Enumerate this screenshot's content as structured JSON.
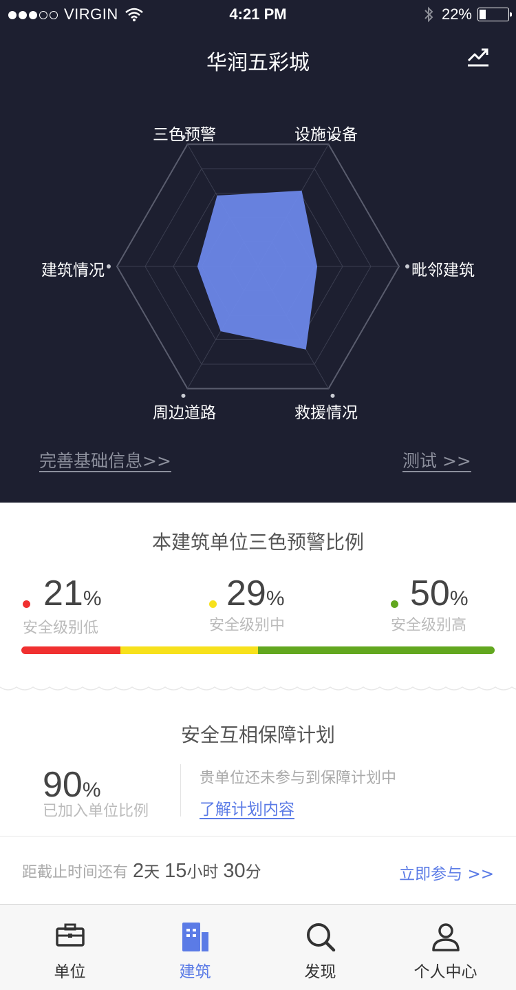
{
  "status_bar": {
    "carrier": "VIRGIN",
    "time": "4:21 PM",
    "battery": "22%"
  },
  "header": {
    "title": "华润五彩城"
  },
  "radar": {
    "axes": [
      "三色预警",
      "设施设备",
      "毗邻建筑",
      "救援情况",
      "周边道路",
      "建筑情况"
    ],
    "values": [
      0.58,
      0.62,
      0.42,
      0.68,
      0.53,
      0.43
    ],
    "fill_color": "#6b87e8"
  },
  "links": {
    "complete_info": "完善基础信息>>",
    "test": "测试 >>"
  },
  "warning": {
    "title": "本建筑单位三色预警比例",
    "items": [
      {
        "value": "21",
        "unit": "%",
        "label": "安全级别低",
        "color": "#f03030"
      },
      {
        "value": "29",
        "unit": "%",
        "label": "安全级别中",
        "color": "#f7e11c"
      },
      {
        "value": "50",
        "unit": "%",
        "label": "安全级别高",
        "color": "#62a71f"
      }
    ]
  },
  "plan": {
    "title": "安全互相保障计划",
    "value": "90",
    "unit": "%",
    "label": "已加入单位比例",
    "desc": "贵单位还未参与到保障计划中",
    "link": "了解计划内容"
  },
  "deadline": {
    "prefix": "距截止时间还有",
    "days": "2",
    "days_unit": "天",
    "hours": "15",
    "hours_unit": "小时",
    "minutes": "30",
    "minutes_unit": "分",
    "action": "立即参与 >>"
  },
  "tabs": [
    {
      "label": "单位",
      "icon": "briefcase-icon"
    },
    {
      "label": "建筑",
      "icon": "building-icon",
      "active": true
    },
    {
      "label": "发现",
      "icon": "search-icon"
    },
    {
      "label": "个人中心",
      "icon": "user-icon"
    }
  ]
}
